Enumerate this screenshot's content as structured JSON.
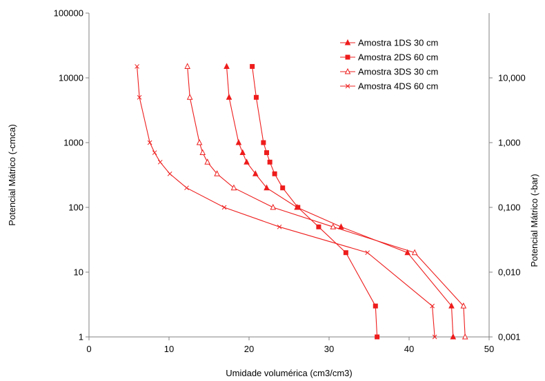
{
  "chart_data": {
    "type": "line",
    "xlabel": "Umidade volumérica (cm3/cm3)",
    "ylabel": "Potencial Mátrico (-cmca)",
    "y2label": "Potencial Mátrico (-bar)",
    "xlim": [
      0,
      50
    ],
    "ylim": [
      1,
      100000
    ],
    "yscale": "log",
    "x_ticks": [
      "0",
      "10",
      "20",
      "30",
      "40",
      "50"
    ],
    "y_ticks": [
      "1",
      "10",
      "100",
      "1000",
      "10000",
      "100000"
    ],
    "y2_ticks": [
      "0,001",
      "0,010",
      "0,100",
      "1,000",
      "10,000"
    ],
    "grid": false,
    "legend_position": "top-right",
    "color": "#ee1c1c",
    "series": [
      {
        "name": "Amostra 1DS 30 cm",
        "marker": "triangle-filled",
        "points": [
          [
            17.2,
            15000
          ],
          [
            17.5,
            5000
          ],
          [
            18.7,
            1000
          ],
          [
            19.2,
            700
          ],
          [
            19.7,
            500
          ],
          [
            20.8,
            330
          ],
          [
            22.2,
            200
          ],
          [
            26.0,
            100
          ],
          [
            31.5,
            50
          ],
          [
            39.8,
            20
          ],
          [
            45.3,
            3
          ],
          [
            45.5,
            1
          ]
        ]
      },
      {
        "name": "Amostra 2DS 60 cm",
        "marker": "square-filled",
        "points": [
          [
            20.4,
            15000
          ],
          [
            20.9,
            5000
          ],
          [
            21.8,
            1000
          ],
          [
            22.2,
            700
          ],
          [
            22.6,
            500
          ],
          [
            23.2,
            330
          ],
          [
            24.2,
            200
          ],
          [
            26.1,
            100
          ],
          [
            28.7,
            50
          ],
          [
            32.1,
            20
          ],
          [
            35.8,
            3
          ],
          [
            36.0,
            1
          ]
        ]
      },
      {
        "name": "Amostra 3DS 30 cm",
        "marker": "triangle-open",
        "points": [
          [
            12.3,
            15000
          ],
          [
            12.6,
            5000
          ],
          [
            13.8,
            1000
          ],
          [
            14.2,
            700
          ],
          [
            14.8,
            500
          ],
          [
            16.0,
            330
          ],
          [
            18.1,
            200
          ],
          [
            23.0,
            100
          ],
          [
            30.5,
            50
          ],
          [
            40.7,
            20
          ],
          [
            46.8,
            3
          ],
          [
            47.0,
            1
          ]
        ]
      },
      {
        "name": "Amostra 4DS 60 cm",
        "marker": "x",
        "points": [
          [
            6.0,
            15000
          ],
          [
            6.3,
            5000
          ],
          [
            7.6,
            1000
          ],
          [
            8.2,
            700
          ],
          [
            8.9,
            500
          ],
          [
            10.1,
            330
          ],
          [
            12.2,
            200
          ],
          [
            16.9,
            100
          ],
          [
            23.8,
            50
          ],
          [
            34.8,
            20
          ],
          [
            42.9,
            3
          ],
          [
            43.2,
            1
          ]
        ]
      }
    ]
  }
}
